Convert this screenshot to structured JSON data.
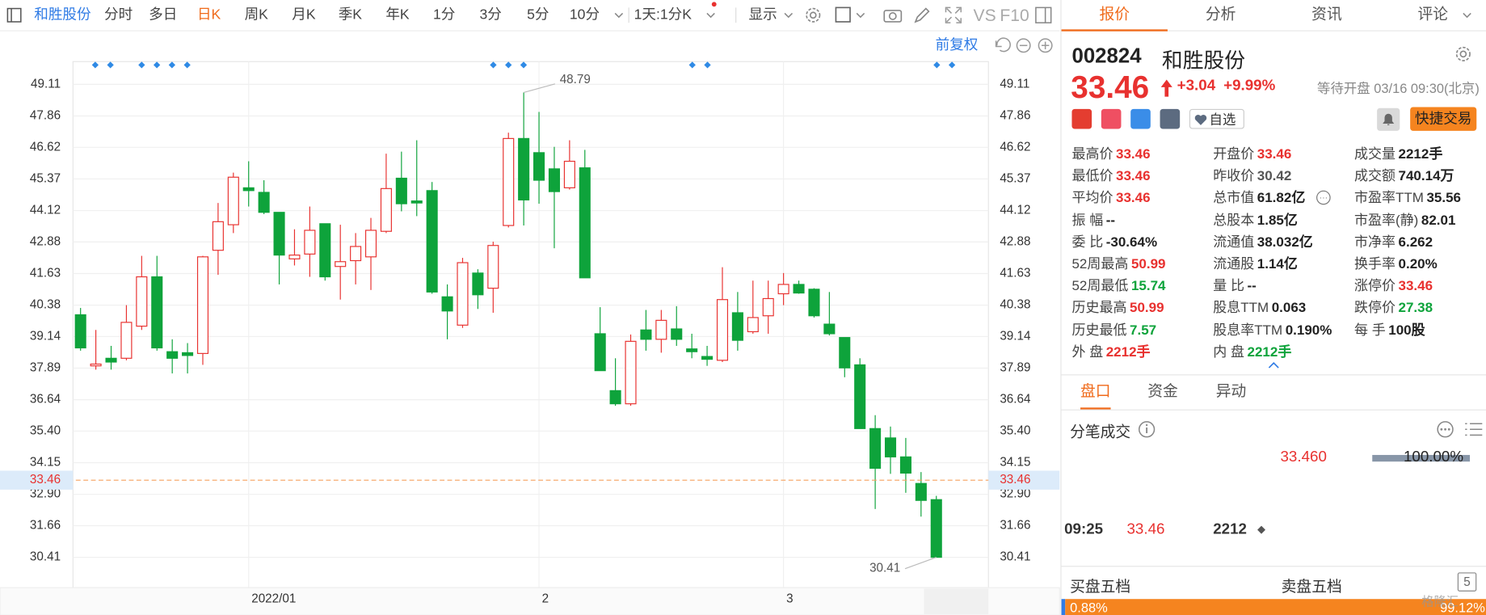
{
  "toolbar": {
    "stock_name": "和胜股份",
    "periods": [
      {
        "label": "分时",
        "active": false
      },
      {
        "label": "多日",
        "active": false
      },
      {
        "label": "日K",
        "active": true
      },
      {
        "label": "周K",
        "active": false
      },
      {
        "label": "月K",
        "active": false
      },
      {
        "label": "季K",
        "active": false
      },
      {
        "label": "年K",
        "active": false
      },
      {
        "label": "1分",
        "active": false
      },
      {
        "label": "3分",
        "active": false
      },
      {
        "label": "5分",
        "active": false
      },
      {
        "label": "10分",
        "active": false
      }
    ],
    "range": "1天:1分K",
    "display": "显示",
    "vs": "VS",
    "f10": "F10"
  },
  "chart_data": {
    "type": "candlestick",
    "adjust": "前复权",
    "categories": [
      null,
      null,
      null,
      null,
      null,
      null,
      null,
      null,
      null,
      null,
      null,
      "2022/01",
      null,
      null,
      null,
      null,
      null,
      null,
      null,
      null,
      null,
      null,
      null,
      null,
      null,
      null,
      null,
      null,
      null,
      null,
      "2",
      null,
      null,
      null,
      null,
      null,
      null,
      null,
      null,
      null,
      null,
      null,
      null,
      null,
      null,
      null,
      "3",
      null,
      null,
      null,
      null,
      null,
      null,
      null,
      null,
      null,
      null
    ],
    "open": [
      40.0,
      37.98,
      38.28,
      38.28,
      39.55,
      41.5,
      38.54,
      38.5,
      38.47,
      42.55,
      43.56,
      45.02,
      44.84,
      44.05,
      42.21,
      42.4,
      43.6,
      41.91,
      42.14,
      42.29,
      43.3,
      45.4,
      44.5,
      44.91,
      40.71,
      39.59,
      41.65,
      41.05,
      43.53,
      46.97,
      46.41,
      45.77,
      45.02,
      45.81,
      39.25,
      37.0,
      36.48,
      39.4,
      39.03,
      39.44,
      38.65,
      38.35,
      38.2,
      40.08,
      39.33,
      39.96,
      40.83,
      41.2,
      41.01,
      39.63,
      39.1,
      38.02,
      35.5,
      35.13,
      34.38,
      33.33,
      32.69
    ],
    "high": [
      40.27,
      39.4,
      38.77,
      40.38,
      42.33,
      42.33,
      39.03,
      38.88,
      42.33,
      44.42,
      45.62,
      46.07,
      45.32,
      44.05,
      43.38,
      44.28,
      43.6,
      43.56,
      43.23,
      43.83,
      46.37,
      46.45,
      46.9,
      45.25,
      41.2,
      42.25,
      41.8,
      42.89,
      47.2,
      48.79,
      48.02,
      46.64,
      46.9,
      46.52,
      40.3,
      38.28,
      39.22,
      40.19,
      40.19,
      40.34,
      39.25,
      38.77,
      41.88,
      40.9,
      41.35,
      41.35,
      41.65,
      41.35,
      41.05,
      40.9,
      39.1,
      38.28,
      36.03,
      35.58,
      35.13,
      33.78,
      32.84
    ],
    "low": [
      38.58,
      37.83,
      37.83,
      38.2,
      39.4,
      38.58,
      37.68,
      37.68,
      38.02,
      41.58,
      43.23,
      44.28,
      43.98,
      41.2,
      41.95,
      41.5,
      41.35,
      40.6,
      41.2,
      40.98,
      43.23,
      44.09,
      43.9,
      40.83,
      39.03,
      39.48,
      40.23,
      40.08,
      43.45,
      43.53,
      44.39,
      42.63,
      44.95,
      41.46,
      37.79,
      36.4,
      36.4,
      38.58,
      38.5,
      38.77,
      38.28,
      37.98,
      38.13,
      38.58,
      39.25,
      39.25,
      40.38,
      40.83,
      39.89,
      39.18,
      37.53,
      35.5,
      32.32,
      33.71,
      32.96,
      32.02,
      30.41
    ],
    "close": [
      38.69,
      38.05,
      38.13,
      39.7,
      41.5,
      38.69,
      38.28,
      38.39,
      42.29,
      43.68,
      45.44,
      44.91,
      44.05,
      42.36,
      42.36,
      43.34,
      41.5,
      42.1,
      42.7,
      43.34,
      44.99,
      44.39,
      44.42,
      40.9,
      40.15,
      42.06,
      40.79,
      42.74,
      46.97,
      44.54,
      45.32,
      44.87,
      46.07,
      41.46,
      37.79,
      36.48,
      38.95,
      39.03,
      39.78,
      39.03,
      38.54,
      38.24,
      40.6,
      38.99,
      39.89,
      40.64,
      41.2,
      40.86,
      39.96,
      39.25,
      37.9,
      35.5,
      33.93,
      34.38,
      33.74,
      32.66,
      30.41
    ],
    "up_color": "#e8312f",
    "down_color": "#0ea33b",
    "last_price": 33.46,
    "price_line_color": "#f5a15e",
    "ylim": [
      29.21,
      50.01
    ],
    "yticks": [
      49.11,
      47.86,
      46.62,
      45.37,
      44.12,
      42.88,
      41.63,
      40.38,
      39.14,
      37.89,
      36.64,
      {
        "value": 35.4,
        "label": "35.40"
      },
      34.15,
      {
        "value": 32.9,
        "label": "32.90"
      },
      31.66,
      30.41
    ],
    "grid": true
  },
  "quote_tabs": [
    {
      "label": "报价",
      "active": true
    },
    {
      "label": "分析",
      "active": false
    },
    {
      "label": "资讯",
      "active": false
    },
    {
      "label": "评论",
      "active": false
    }
  ],
  "quote": {
    "code": "002824",
    "name": "和胜股份",
    "price": "33.46",
    "change": "+3.04",
    "change_pct": "+9.99%",
    "status": "等待开盘 03/16 09:30(北京)",
    "watch": "自选",
    "quick_trade": "快捷交易",
    "stats": [
      [
        {
          "label": "最高价",
          "value": "33.46",
          "color": "#e8312f"
        },
        {
          "label": "开盘价",
          "value": "33.46",
          "color": "#e8312f"
        },
        {
          "label": "成交量",
          "value": "2212手"
        }
      ],
      [
        {
          "label": "最低价",
          "value": "33.46",
          "color": "#e8312f"
        },
        {
          "label": "昨收价",
          "value": "30.42",
          "color": "#555555"
        },
        {
          "label": "成交额",
          "value": "740.14万"
        }
      ],
      [
        {
          "label": "平均价",
          "value": "33.46",
          "color": "#e8312f"
        },
        {
          "label": "总市值",
          "value": "61.82亿"
        },
        {
          "label": "市盈率TTM",
          "value": "35.56"
        }
      ],
      [
        {
          "label": "振 幅",
          "value": "--"
        },
        {
          "label": "总股本",
          "value": "1.85亿"
        },
        {
          "label": "市盈率(静)",
          "value": "82.01"
        }
      ],
      [
        {
          "label": "委 比",
          "value": "-30.64%"
        },
        {
          "label": "流通值",
          "value": "38.032亿"
        },
        {
          "label": "市净率",
          "value": "6.262"
        }
      ],
      [
        {
          "label": "52周最高",
          "value": "50.99",
          "color": "#e8312f"
        },
        {
          "label": "流通股",
          "value": "1.14亿"
        },
        {
          "label": "换手率",
          "value": "0.20%"
        }
      ],
      [
        {
          "label": "52周最低",
          "value": "15.74",
          "color": "#0ea33b"
        },
        {
          "label": "量 比",
          "value": "--"
        },
        {
          "label": "涨停价",
          "value": "33.46",
          "color": "#e8312f"
        }
      ],
      [
        {
          "label": "历史最高",
          "value": "50.99",
          "color": "#e8312f"
        },
        {
          "label": "股息TTM",
          "value": "0.063"
        },
        {
          "label": "跌停价",
          "value": "27.38",
          "color": "#0ea33b"
        }
      ],
      [
        {
          "label": "历史最低",
          "value": "7.57",
          "color": "#0ea33b"
        },
        {
          "label": "股息率TTM",
          "value": "0.190%"
        },
        {
          "label": "每 手",
          "value": "100股"
        }
      ],
      [
        {
          "label": "外 盘",
          "value": "2212手",
          "color": "#e8312f"
        },
        {
          "label": "内 盘",
          "value": "2212手",
          "color": "#0ea33b"
        }
      ]
    ]
  },
  "sub_tabs": [
    {
      "label": "盘口",
      "active": true
    },
    {
      "label": "资金",
      "active": false
    },
    {
      "label": "异动",
      "active": false
    }
  ],
  "ticks": {
    "title": "分笔成交",
    "summary_price": "33.460",
    "summary_pct": "100.00%",
    "rows": [
      {
        "time": "09:25",
        "price": "33.46",
        "volume": "2212"
      }
    ]
  },
  "depth": {
    "buy_title": "买盘五档",
    "sell_title": "卖盘五档",
    "levels": "5",
    "buy_pct": "0.88%",
    "sell_pct": "99.12%"
  },
  "watermark": "格隆汇"
}
